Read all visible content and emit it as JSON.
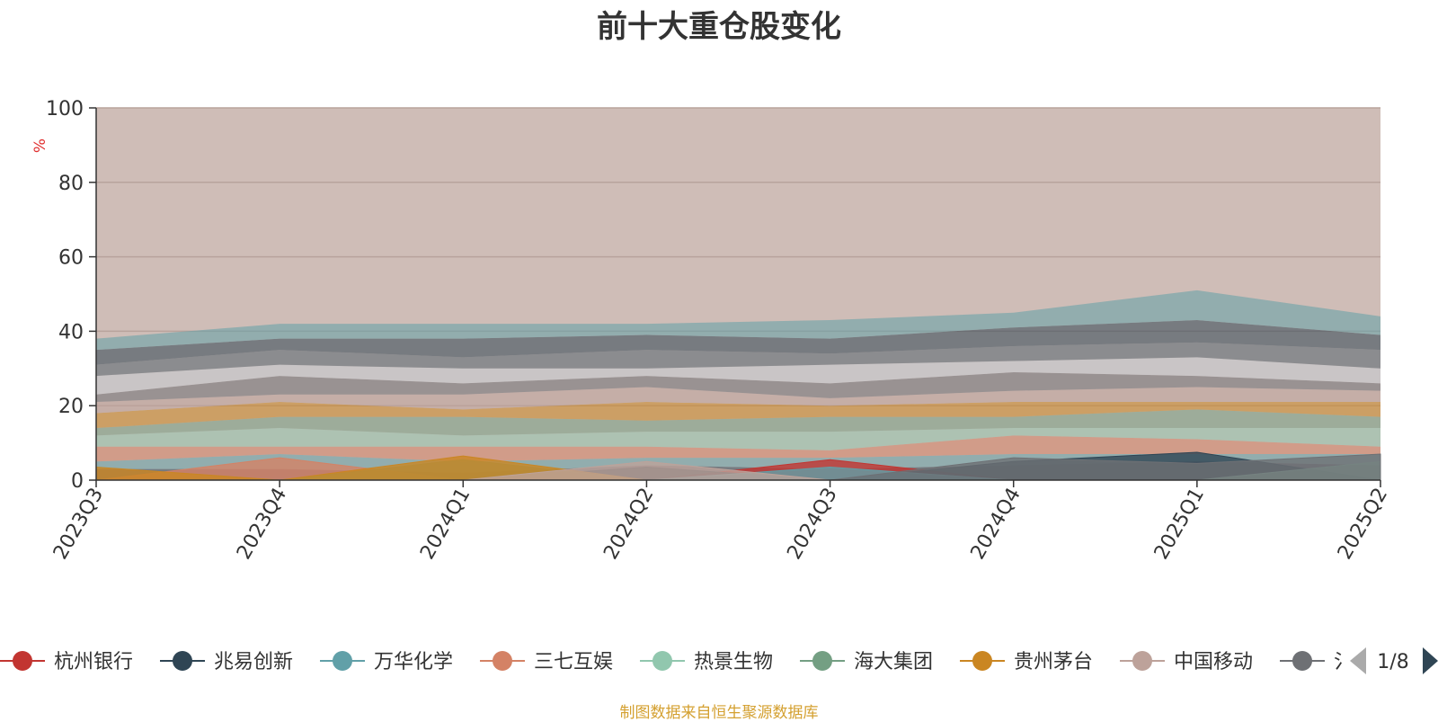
{
  "chart_data": {
    "type": "area",
    "title": "前十大重仓股变化",
    "ylabel": "%",
    "xlabel": "",
    "ylim": [
      0,
      100
    ],
    "yticks": [
      0,
      20,
      40,
      60,
      80,
      100
    ],
    "grid": true,
    "legend_position": "bottom",
    "categories": [
      "2023Q3",
      "2023Q4",
      "2024Q1",
      "2024Q2",
      "2024Q3",
      "2024Q4",
      "2025Q1",
      "2025Q2"
    ],
    "series": [
      {
        "name": "杭州银行",
        "color": "#c23531",
        "values": [
          0,
          0,
          0,
          0,
          5.5,
          0,
          0,
          0
        ]
      },
      {
        "name": "兆易创新",
        "color": "#2f4554",
        "values": [
          0,
          0,
          0,
          3.5,
          0,
          5,
          7.5,
          0
        ]
      },
      {
        "name": "万华化学",
        "color": "#61a0a8",
        "values": [
          0,
          0,
          0,
          0,
          3.5,
          0,
          0,
          0
        ]
      },
      {
        "name": "三七互娱",
        "color": "#d48265",
        "values": [
          0,
          6,
          0,
          0,
          0,
          0,
          0,
          0
        ]
      },
      {
        "name": "热景生物",
        "color": "#91c7ae",
        "values": [
          0,
          0,
          0,
          0,
          0,
          0,
          0,
          5
        ]
      },
      {
        "name": "海大集团",
        "color": "#749f83",
        "values": [
          0,
          0,
          5.5,
          0,
          0,
          0,
          0,
          0
        ]
      },
      {
        "name": "贵州茅台",
        "color": "#ca8622",
        "values": [
          3.5,
          0,
          6.5,
          0,
          0,
          0,
          0,
          0
        ]
      },
      {
        "name": "中国移动",
        "color": "#bda29a",
        "values": [
          0,
          0,
          0,
          5,
          0,
          0,
          0,
          0
        ]
      },
      {
        "name": "",
        "color": "#6e7074",
        "values": [
          0,
          0,
          0,
          0,
          0,
          6,
          4.5,
          7
        ]
      }
    ]
  },
  "legend": {
    "items": [
      "杭州银行",
      "兆易创新",
      "万华化学",
      "三七互娱",
      "热景生物",
      "海大集团",
      "贵州茅台",
      "中国移动",
      "氵"
    ],
    "page_label": "1/8"
  },
  "source_note": "制图数据来自恒生聚源数据库"
}
